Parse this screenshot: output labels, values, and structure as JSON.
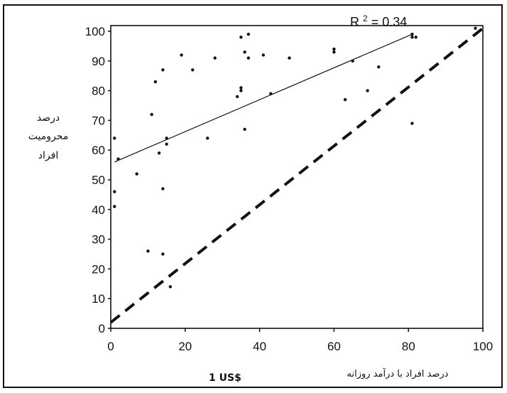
{
  "chart_data": {
    "type": "scatter",
    "ylabel_lines": [
      "درصد",
      "محرومیت",
      "افراد"
    ],
    "xlabel_text": "درصد افراد با درآمد روزانه",
    "xlabel_bold": "1 US$",
    "annotation": {
      "text": "R",
      "sup": "2",
      "value": " = 0.34"
    },
    "xlim": [
      0,
      100
    ],
    "ylim": [
      0,
      100
    ],
    "x_ticks": [
      "0",
      "20",
      "40",
      "60",
      "80",
      "100"
    ],
    "y_ticks": [
      "0",
      "10",
      "20",
      "30",
      "40",
      "50",
      "60",
      "70",
      "80",
      "90",
      "100"
    ],
    "grid": false,
    "series": [
      {
        "type": "scatter",
        "x": [
          1,
          1,
          1,
          2,
          7,
          10,
          11,
          12,
          13,
          14,
          14,
          14,
          15,
          15,
          16,
          19,
          22,
          26,
          28,
          34,
          35,
          35,
          35,
          36,
          36,
          37,
          37,
          41,
          43,
          48,
          60,
          60,
          63,
          65,
          69,
          72,
          81,
          81,
          81,
          82,
          98
        ],
        "y": [
          64,
          46,
          41,
          57,
          52,
          26,
          72,
          83,
          59,
          47,
          25,
          87,
          62,
          64,
          14,
          92,
          87,
          64,
          91,
          78,
          80,
          81,
          98,
          93,
          67,
          99,
          91,
          92,
          79,
          91,
          94,
          93,
          77,
          90,
          80,
          88,
          99,
          98,
          69,
          98,
          101
        ]
      },
      {
        "type": "line",
        "style": "solid",
        "x": [
          1,
          81
        ],
        "y": [
          56,
          99
        ]
      },
      {
        "type": "line",
        "style": "dashed",
        "x": [
          0,
          100
        ],
        "y": [
          2,
          101
        ]
      }
    ]
  }
}
